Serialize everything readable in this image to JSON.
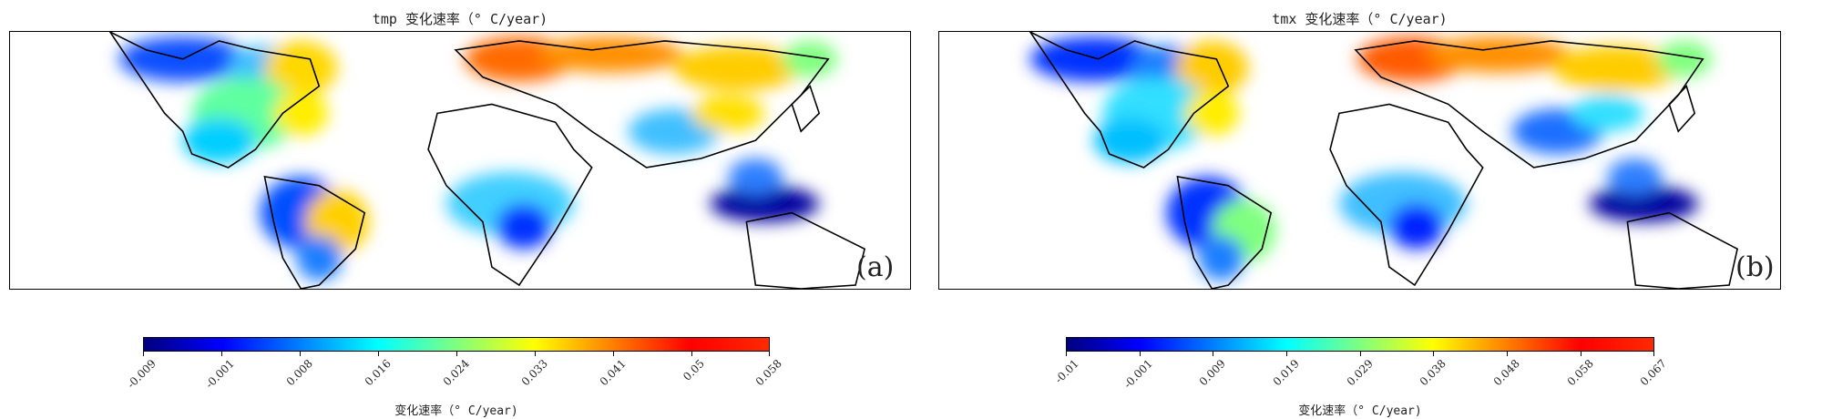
{
  "panels": [
    {
      "title": "tmp 变化速率（° C/year)",
      "tag": "(a)",
      "colorbar": {
        "colormap": "jet",
        "ticks": [
          "-0.009",
          "-0.001",
          "0.008",
          "0.016",
          "0.024",
          "0.033",
          "0.041",
          "0.05",
          "0.058"
        ],
        "label": "变化速率（° C/year)"
      }
    },
    {
      "title": "tmx 变化速率（° C/year)",
      "tag": "(b)",
      "colorbar": {
        "colormap": "jet",
        "ticks": [
          "-0.01",
          "-0.001",
          "0.009",
          "0.019",
          "0.029",
          "0.038",
          "0.048",
          "0.058",
          "0.067"
        ],
        "label": "变化速率（° C/year)"
      }
    }
  ],
  "colors": {
    "jet": [
      "#00007f",
      "#0000ff",
      "#007fff",
      "#00ffff",
      "#7fff7f",
      "#ffff00",
      "#ff7f00",
      "#ff0000",
      "#ff2a00"
    ]
  }
}
